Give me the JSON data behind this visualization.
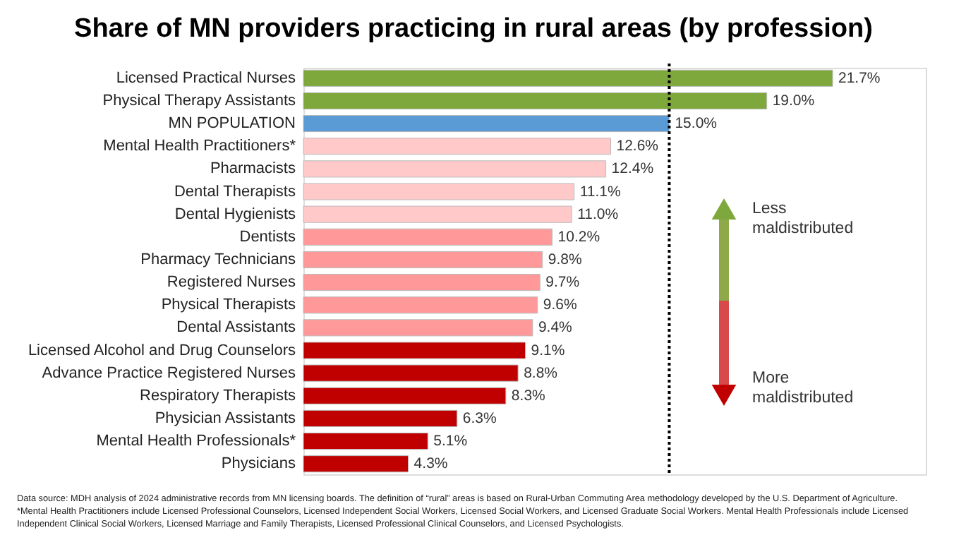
{
  "chart_data": {
    "type": "bar",
    "orientation": "horizontal",
    "title": "Share of MN providers practicing in rural areas (by profession)",
    "categories": [
      "Licensed Practical Nurses",
      "Physical Therapy Assistants",
      "MN POPULATION",
      "Mental Health Practitioners*",
      "Pharmacists",
      "Dental Therapists",
      "Dental Hygienists",
      "Dentists",
      "Pharmacy Technicians",
      "Registered Nurses",
      "Physical Therapists",
      "Dental Assistants",
      "Licensed Alcohol and Drug Counselors",
      "Advance Practice Registered Nurses",
      "Respiratory Therapists",
      "Physician Assistants",
      "Mental Health Professionals*",
      "Physicians"
    ],
    "values": [
      21.7,
      19.0,
      15.0,
      12.6,
      12.4,
      11.1,
      11.0,
      10.2,
      9.8,
      9.7,
      9.6,
      9.4,
      9.1,
      8.8,
      8.3,
      6.3,
      5.1,
      4.3
    ],
    "value_labels": [
      "21.7%",
      "19.0%",
      "15.0%",
      "12.6%",
      "12.4%",
      "11.1%",
      "11.0%",
      "10.2%",
      "9.8%",
      "9.7%",
      "9.6%",
      "9.4%",
      "9.1%",
      "8.8%",
      "8.3%",
      "6.3%",
      "5.1%",
      "4.3%"
    ],
    "colors": [
      "#7ea83b",
      "#7ea83b",
      "#5b9bd5",
      "#ffc9c9",
      "#ffc9c9",
      "#ffc9c9",
      "#ffc9c9",
      "#ff9999",
      "#ff9999",
      "#ff9999",
      "#ff9999",
      "#ff9999",
      "#c00000",
      "#c00000",
      "#c00000",
      "#c00000",
      "#c00000",
      "#c00000"
    ],
    "ref_lines": [
      {
        "axis": "x",
        "value": 15.0,
        "label": null,
        "line_style": "dotted",
        "color": "#000000"
      }
    ],
    "grid": false,
    "annotations": [
      "Less maldistributed",
      "More maldistributed",
      "Data source: MDH analysis of 2024 administrative records from MN licensing boards. The definition of “rural” areas is based on Rural-Urban Commuting Area methodology developed by the U.S. Department of Agriculture.",
      "*Mental Health Practitioners include Licensed Professional Counselors, Licensed Independent Social Workers, Licensed Social Workers, and Licensed Graduate Social Workers. Mental Health Professionals include Licensed",
      "Independent Clinical Social Workers, Licensed Marriage and Family Therapists, Licensed Professional Clinical Counselors, and Licensed Psychologists."
    ]
  }
}
